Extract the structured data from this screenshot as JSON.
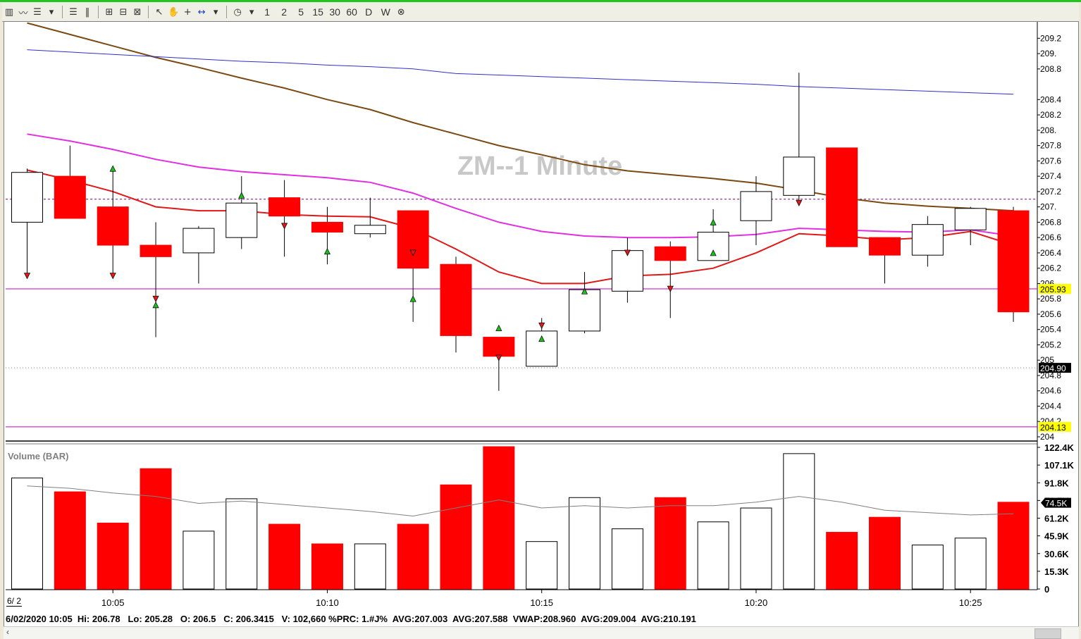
{
  "toolbar": {
    "icons": [
      "bar-chart-icon",
      "line-chart-icon",
      "indicator-icon",
      "dropdown-icon",
      "list-icon",
      "split-icon",
      "zoom-box-icon",
      "zoom-out-icon",
      "zoom-fit-icon",
      "pointer-icon",
      "hand-icon",
      "crosshair-icon",
      "measure-icon",
      "dropdown-icon",
      "clock-icon",
      "dropdown-icon"
    ],
    "intervals": [
      "1",
      "2",
      "5",
      "15",
      "30",
      "60",
      "D",
      "W"
    ],
    "close_label": "⊗"
  },
  "watermark": "ZM--1 Minute",
  "status_line": "6/02/2020 10:05  Hi: 206.78   Lo: 205.28   O: 206.5   C: 206.3415   V: 102,660 %PRC: 1.#J%  AVG:207.003  AVG:207.588  VWAP:208.960  AVG:209.004  AVG:210.191",
  "date_marker": "6/ 2",
  "colors": {
    "up_candle": "#ffffff",
    "down_candle": "#ff0000",
    "ma_brown": "#7a4a12",
    "ma_blue": "#3030c8",
    "ma_magenta": "#e030e0",
    "ma_red": "#e01818",
    "hline_magenta": "#c000c0",
    "price_tag": "#ffff00"
  },
  "chart_data": [
    {
      "type": "candlestick",
      "title": "ZM--1 Minute",
      "x_times": [
        "10:03",
        "10:04",
        "10:05",
        "10:06",
        "10:07",
        "10:08",
        "10:09",
        "10:10",
        "10:11",
        "10:12",
        "10:13",
        "10:14",
        "10:15",
        "10:16",
        "10:17",
        "10:18",
        "10:19",
        "10:20",
        "10:21",
        "10:22",
        "10:23",
        "10:24",
        "10:25",
        "10:26"
      ],
      "x_ticks": [
        "10:05",
        "10:10",
        "10:15",
        "10:20",
        "10:25"
      ],
      "candles": [
        {
          "o": 206.8,
          "h": 207.5,
          "l": 206.1,
          "c": 207.45
        },
        {
          "o": 207.4,
          "h": 207.8,
          "l": 206.85,
          "c": 206.85
        },
        {
          "o": 207.0,
          "h": 207.5,
          "l": 206.1,
          "c": 206.5
        },
        {
          "o": 206.5,
          "h": 206.8,
          "l": 205.3,
          "c": 206.35
        },
        {
          "o": 206.4,
          "h": 206.75,
          "l": 206.0,
          "c": 206.72
        },
        {
          "o": 206.6,
          "h": 207.4,
          "l": 206.45,
          "c": 207.05
        },
        {
          "o": 207.12,
          "h": 207.35,
          "l": 206.35,
          "c": 206.88
        },
        {
          "o": 206.8,
          "h": 207.0,
          "l": 206.25,
          "c": 206.67
        },
        {
          "o": 206.65,
          "h": 207.12,
          "l": 206.6,
          "c": 206.76
        },
        {
          "o": 206.95,
          "h": 206.95,
          "l": 205.5,
          "c": 206.2
        },
        {
          "o": 206.25,
          "h": 206.35,
          "l": 205.1,
          "c": 205.32
        },
        {
          "o": 205.3,
          "h": 205.3,
          "l": 204.6,
          "c": 205.05
        },
        {
          "o": 204.92,
          "h": 205.55,
          "l": 204.92,
          "c": 205.38
        },
        {
          "o": 205.38,
          "h": 206.15,
          "l": 205.35,
          "c": 205.92
        },
        {
          "o": 205.9,
          "h": 206.6,
          "l": 205.75,
          "c": 206.43
        },
        {
          "o": 206.48,
          "h": 206.55,
          "l": 205.55,
          "c": 206.3
        },
        {
          "o": 206.3,
          "h": 206.97,
          "l": 206.3,
          "c": 206.67
        },
        {
          "o": 206.82,
          "h": 207.4,
          "l": 206.5,
          "c": 207.2
        },
        {
          "o": 207.15,
          "h": 208.75,
          "l": 207.05,
          "c": 207.65
        },
        {
          "o": 207.77,
          "h": 207.77,
          "l": 206.48,
          "c": 206.48
        },
        {
          "o": 206.6,
          "h": 206.6,
          "l": 206.0,
          "c": 206.37
        },
        {
          "o": 206.37,
          "h": 206.88,
          "l": 206.22,
          "c": 206.77
        },
        {
          "o": 206.7,
          "h": 207.0,
          "l": 206.5,
          "c": 206.98
        },
        {
          "o": 206.95,
          "h": 207.0,
          "l": 205.5,
          "c": 205.63
        }
      ],
      "moving_averages": [
        {
          "color": "#7a4a12",
          "values": [
            209.4,
            209.25,
            209.1,
            208.95,
            208.82,
            208.68,
            208.55,
            208.4,
            208.27,
            208.1,
            207.95,
            207.8,
            207.68,
            207.55,
            207.47,
            207.42,
            207.37,
            207.31,
            207.22,
            207.12,
            207.05,
            207.01,
            206.98,
            206.95
          ]
        },
        {
          "color": "#3030c8",
          "values": [
            209.05,
            209.02,
            208.99,
            208.96,
            208.93,
            208.9,
            208.88,
            208.85,
            208.83,
            208.8,
            208.74,
            208.72,
            208.7,
            208.68,
            208.66,
            208.64,
            208.62,
            208.6,
            208.57,
            208.55,
            208.53,
            208.51,
            208.49,
            208.47
          ]
        },
        {
          "color": "#e030e0",
          "values": [
            207.95,
            207.86,
            207.75,
            207.62,
            207.52,
            207.46,
            207.42,
            207.38,
            207.32,
            207.18,
            206.98,
            206.8,
            206.68,
            206.62,
            206.6,
            206.6,
            206.61,
            206.64,
            206.72,
            206.7,
            206.68,
            206.67,
            206.7,
            206.62
          ]
        },
        {
          "color": "#e01818",
          "values": [
            207.48,
            207.35,
            207.2,
            207.0,
            206.95,
            206.95,
            206.9,
            206.88,
            206.87,
            206.72,
            206.45,
            206.15,
            206.0,
            206.0,
            206.1,
            206.12,
            206.2,
            206.4,
            206.65,
            206.62,
            206.57,
            206.6,
            206.68,
            206.5
          ]
        }
      ],
      "signal_markers": [
        {
          "i": 0,
          "type": "down",
          "price": 206.1
        },
        {
          "i": 2,
          "type": "up",
          "price": 207.5
        },
        {
          "i": 2,
          "type": "down",
          "price": 206.1
        },
        {
          "i": 3,
          "type": "down",
          "price": 205.8
        },
        {
          "i": 3,
          "type": "up",
          "price": 205.72
        },
        {
          "i": 5,
          "type": "up",
          "price": 207.15
        },
        {
          "i": 6,
          "type": "down",
          "price": 206.75
        },
        {
          "i": 7,
          "type": "up",
          "price": 206.42
        },
        {
          "i": 9,
          "type": "down",
          "price": 206.4
        },
        {
          "i": 9,
          "type": "up",
          "price": 205.8
        },
        {
          "i": 11,
          "type": "up",
          "price": 205.42
        },
        {
          "i": 11,
          "type": "down",
          "price": 205.03
        },
        {
          "i": 12,
          "type": "down",
          "price": 205.45
        },
        {
          "i": 12,
          "type": "up",
          "price": 205.28
        },
        {
          "i": 13,
          "type": "up",
          "price": 205.9
        },
        {
          "i": 14,
          "type": "down",
          "price": 206.4
        },
        {
          "i": 15,
          "type": "down",
          "price": 205.93
        },
        {
          "i": 16,
          "type": "up",
          "price": 206.8
        },
        {
          "i": 16,
          "type": "up",
          "price": 206.4
        },
        {
          "i": 18,
          "type": "down",
          "price": 207.05
        }
      ],
      "horizontal_lines": [
        {
          "price": 205.93,
          "style": "solid",
          "color": "#c000c0",
          "label": "205.93"
        },
        {
          "price": 204.9,
          "style": "dotted",
          "color": "#808080",
          "label": "204.90"
        },
        {
          "price": 204.13,
          "style": "solid",
          "color": "#c000c0",
          "label": "204.13"
        },
        {
          "price": 207.1,
          "style": "dashed",
          "color": "#800080",
          "label": ""
        }
      ],
      "y_ticks": [
        "209.2",
        "209.",
        "208.8",
        "208.4",
        "208.2",
        "208.",
        "207.8",
        "207.6",
        "207.4",
        "207.2",
        "207.",
        "206.8",
        "206.6",
        "206.4",
        "206.2",
        "206",
        "205.8",
        "205.6",
        "205.4",
        "205.2",
        "205",
        "204.8",
        "204.6",
        "204.4",
        "204.2",
        "204"
      ],
      "ylim": [
        204.0,
        209.35
      ]
    },
    {
      "type": "bar",
      "title": "Volume (BAR)",
      "values": [
        96000,
        84000,
        57000,
        104000,
        50000,
        78000,
        56000,
        39000,
        39000,
        56000,
        90000,
        123000,
        41000,
        79000,
        52000,
        79000,
        58000,
        70000,
        117000,
        49000,
        62000,
        38000,
        44000,
        75000
      ],
      "avg_line": [
        89000,
        87000,
        83000,
        80000,
        74000,
        76000,
        73000,
        70000,
        67000,
        63000,
        70000,
        77000,
        70000,
        72000,
        70000,
        72000,
        72000,
        75000,
        80000,
        75000,
        68000,
        66000,
        64000,
        65000
      ],
      "y_ticks": [
        "122.4K",
        "107.1K",
        "91.8K",
        "76.5K",
        "61.2K",
        "45.9K",
        "30.6K",
        "15.3K",
        "0"
      ],
      "last_label": "74.5K",
      "ylim": [
        0,
        122400
      ]
    }
  ]
}
